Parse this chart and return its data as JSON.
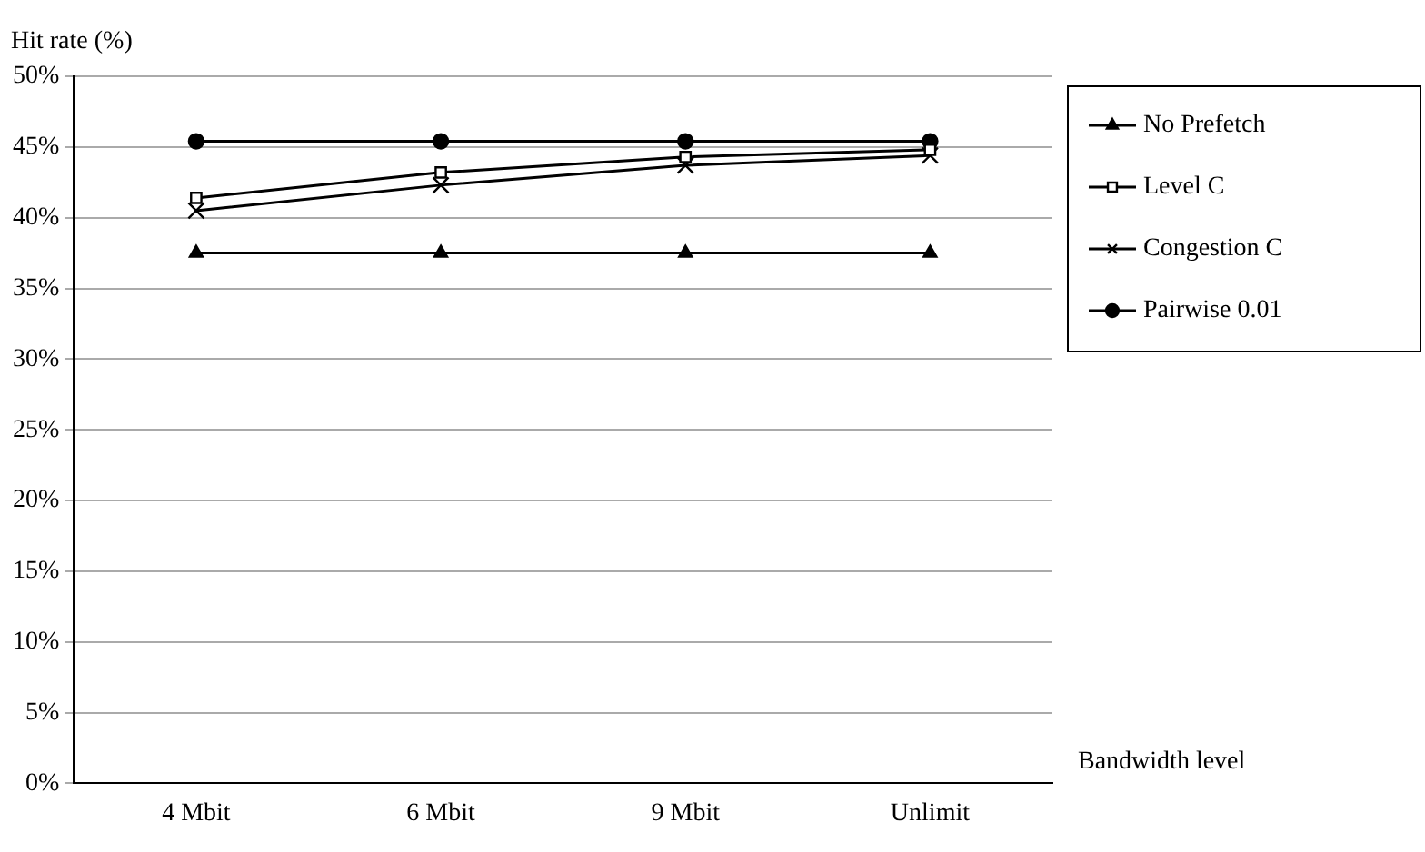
{
  "chart_data": {
    "type": "line",
    "ylabel": "Hit rate (%)",
    "xlabel": "Bandwidth level",
    "categories": [
      "4 Mbit",
      "6 Mbit",
      "9 Mbit",
      "Unlimit"
    ],
    "series": [
      {
        "name": "No Prefetch",
        "color": "#000000",
        "marker": "triangle",
        "values": [
          37.5,
          37.5,
          37.5,
          37.5
        ]
      },
      {
        "name": "Level C",
        "color": "#000000",
        "marker": "square",
        "values": [
          41.4,
          43.2,
          44.3,
          44.8
        ]
      },
      {
        "name": "Congestion C",
        "color": "#000000",
        "marker": "cross",
        "values": [
          40.5,
          42.3,
          43.7,
          44.4
        ]
      },
      {
        "name": "Pairwise 0.01",
        "color": "#000000",
        "marker": "circle",
        "values": [
          45.4,
          45.4,
          45.4,
          45.4
        ]
      }
    ],
    "ylim": [
      0,
      50
    ],
    "yticks": [
      {
        "value": 0,
        "label": "0%"
      },
      {
        "value": 5,
        "label": "5%"
      },
      {
        "value": 10,
        "label": "10%"
      },
      {
        "value": 15,
        "label": "15%"
      },
      {
        "value": 20,
        "label": "20%"
      },
      {
        "value": 25,
        "label": "25%"
      },
      {
        "value": 30,
        "label": "30%"
      },
      {
        "value": 35,
        "label": "35%"
      },
      {
        "value": 40,
        "label": "40%"
      },
      {
        "value": 45,
        "label": "45%"
      },
      {
        "value": 50,
        "label": "50%"
      }
    ],
    "grid": "y",
    "legend": "right"
  }
}
